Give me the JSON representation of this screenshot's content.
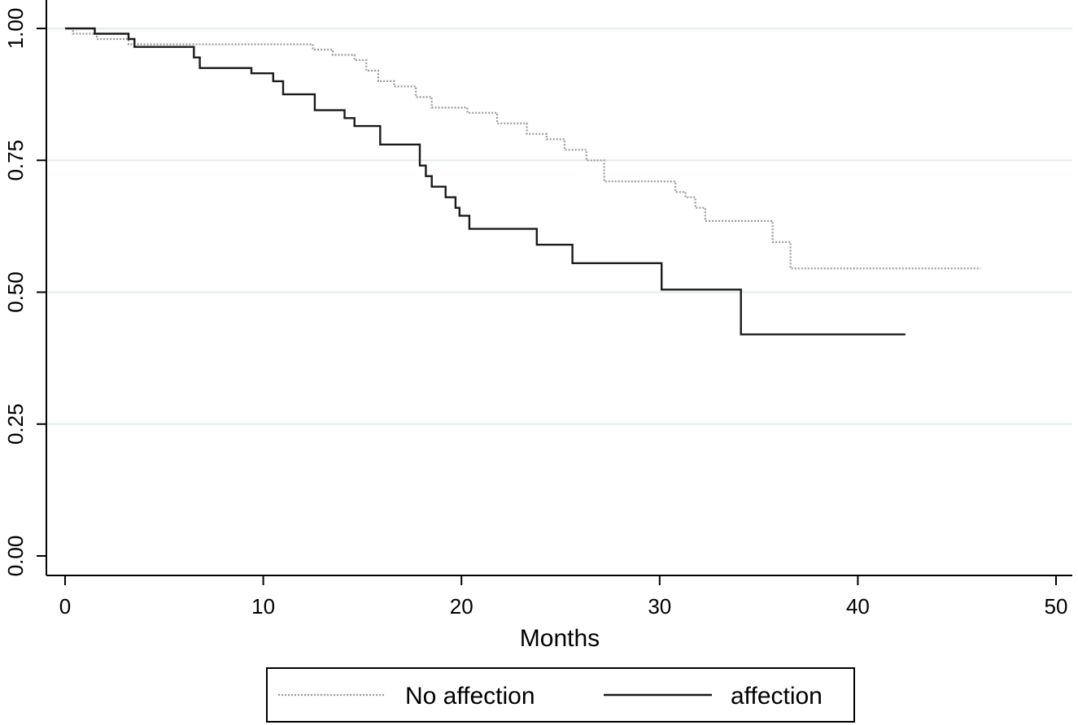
{
  "chart_data": {
    "type": "line",
    "subtype": "kaplan-meier",
    "title": "",
    "xlabel": "Months",
    "ylabel": "",
    "xlim": [
      0,
      50
    ],
    "ylim": [
      0,
      1
    ],
    "xticks": [
      0,
      10,
      20,
      30,
      40,
      50
    ],
    "xtick_labels": [
      "0",
      "10",
      "20",
      "30",
      "40",
      "50"
    ],
    "yticks": [
      0,
      0.25,
      0.5,
      0.75,
      1
    ],
    "ytick_labels": [
      "0.00",
      "0.25",
      "0.50",
      "0.75",
      "1.00"
    ],
    "grid": "horizontal",
    "legend_position": "bottom",
    "series": [
      {
        "name": "No affection",
        "style": "dotted",
        "color": "#9a9a9a",
        "x": [
          0,
          0.4,
          1.6,
          3.2,
          12.5,
          13.5,
          14.6,
          15.2,
          15.8,
          16.6,
          17.7,
          18.5,
          20.3,
          21.8,
          23.3,
          24.3,
          25.2,
          26.3,
          27.2,
          30.8,
          31.3,
          31.8,
          32.3,
          35.7,
          36.6,
          46.2
        ],
        "y": [
          1.0,
          0.99,
          0.98,
          0.97,
          0.96,
          0.95,
          0.94,
          0.92,
          0.9,
          0.89,
          0.87,
          0.85,
          0.84,
          0.82,
          0.8,
          0.79,
          0.77,
          0.75,
          0.71,
          0.69,
          0.68,
          0.66,
          0.635,
          0.595,
          0.545,
          0.545
        ]
      },
      {
        "name": "affection",
        "style": "solid",
        "color": "#1a1a1a",
        "x": [
          0,
          1.5,
          3.2,
          3.5,
          6.5,
          6.8,
          9.4,
          10.5,
          11.0,
          12.6,
          14.1,
          14.6,
          15.9,
          17.9,
          18.2,
          18.5,
          19.2,
          19.7,
          19.9,
          20.4,
          23.8,
          25.6,
          30.1,
          34.1,
          42.4
        ],
        "y": [
          1.0,
          0.99,
          0.98,
          0.965,
          0.945,
          0.925,
          0.915,
          0.9,
          0.875,
          0.845,
          0.83,
          0.815,
          0.78,
          0.74,
          0.72,
          0.7,
          0.68,
          0.66,
          0.645,
          0.62,
          0.59,
          0.555,
          0.505,
          0.42,
          0.42
        ]
      }
    ]
  }
}
